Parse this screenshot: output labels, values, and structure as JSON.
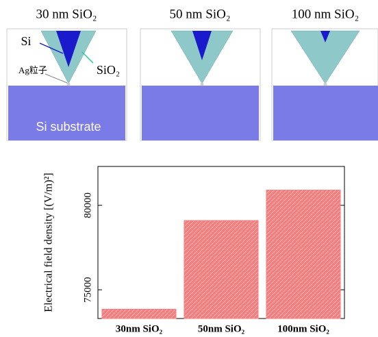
{
  "panels": [
    {
      "title": "30 nm SiO₂"
    },
    {
      "title": "50 nm SiO₂"
    },
    {
      "title": "100 nm SiO₂"
    }
  ],
  "annotations": {
    "tip": "Si",
    "shell": "SiO₂",
    "particle": "Ag粒子",
    "substrate": "Si substrate"
  },
  "chart_data": {
    "type": "bar",
    "y_label": "Electrical field density [(V/m)²]",
    "categories": [
      "30nm SiO₂",
      "50nm SiO₂",
      "100nm SiO₂"
    ],
    "values": [
      73850,
      79100,
      80900
    ],
    "color": "#f27f7f",
    "ylim": [
      73300,
      82300
    ],
    "yticks": [
      75000,
      80000
    ]
  }
}
